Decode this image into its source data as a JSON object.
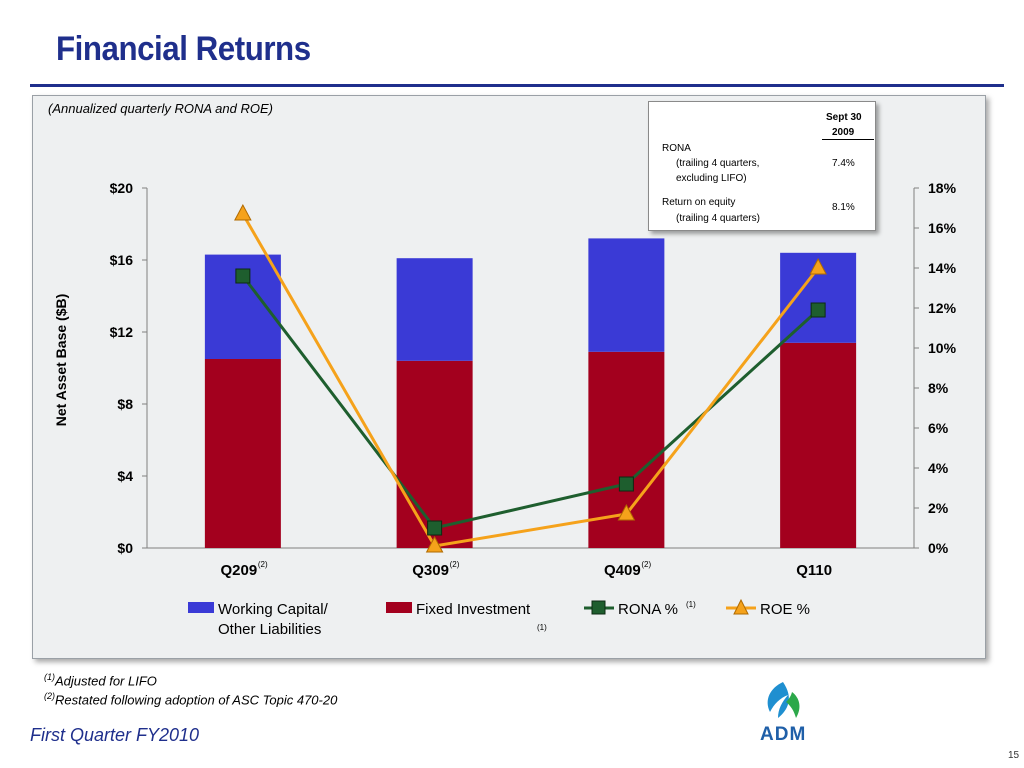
{
  "title": "Financial Returns",
  "subtitle": "(Annualized quarterly RONA and ROE)",
  "table": {
    "header_line1": "Sept 30",
    "header_line2": "2009",
    "rona_label": "RONA",
    "rona_sub1": "(trailing 4 quarters,",
    "rona_sub2": "excluding LIFO)",
    "rona_value": "7.4%",
    "roe_label": "Return on equity",
    "roe_sub": "(trailing 4 quarters)",
    "roe_value": "8.1%"
  },
  "chart_data": {
    "type": "bar",
    "stacked": true,
    "categories": [
      "Q209",
      "Q309",
      "Q409",
      "Q110"
    ],
    "category_superscripts": [
      "(2)",
      "(2)",
      "(2)",
      ""
    ],
    "ylabel": "Net Asset Base ($B)",
    "ylim": [
      0,
      20
    ],
    "y_ticks": [
      "$0",
      "$4",
      "$8",
      "$12",
      "$16",
      "$20"
    ],
    "y2lim": [
      0,
      18
    ],
    "y2_ticks": [
      "0%",
      "2%",
      "4%",
      "6%",
      "8%",
      "10%",
      "12%",
      "14%",
      "16%",
      "18%"
    ],
    "series": [
      {
        "name": "Fixed Investment",
        "axis": "left",
        "kind": "bar",
        "color": "#a3001e",
        "values": [
          10.5,
          10.4,
          10.9,
          11.4
        ]
      },
      {
        "name": "Working Capital/ Other Liabilities",
        "axis": "left",
        "kind": "bar",
        "color": "#3a3ad6",
        "values": [
          5.8,
          5.7,
          6.3,
          5.0
        ]
      },
      {
        "name": "RONA %",
        "axis": "right",
        "kind": "line",
        "marker": "square",
        "color": "#1e5e2e",
        "values": [
          13.6,
          1.0,
          3.2,
          11.9
        ]
      },
      {
        "name": "ROE %",
        "axis": "right",
        "kind": "line",
        "marker": "triangle",
        "color": "#f5a21b",
        "values": [
          16.7,
          0.1,
          1.7,
          14.0
        ]
      }
    ],
    "legend": {
      "wc_line1": "Working Capital/",
      "wc_line2": "Other Liabilities",
      "fixed": "Fixed Investment",
      "fixed_sup": "(1)",
      "rona": "RONA %",
      "rona_sup": "(1)",
      "roe": "ROE %"
    }
  },
  "footnotes": {
    "f1_mark": "(1)",
    "f1_text": "Adjusted for LIFO",
    "f2_mark": "(2)",
    "f2_text": "Restated following adoption of ASC Topic 470-20"
  },
  "footer": "First Quarter FY2010",
  "logo_text": "ADM",
  "page_number": "15",
  "colors": {
    "title": "#1f2f8c",
    "panel": "#eef0f1"
  }
}
